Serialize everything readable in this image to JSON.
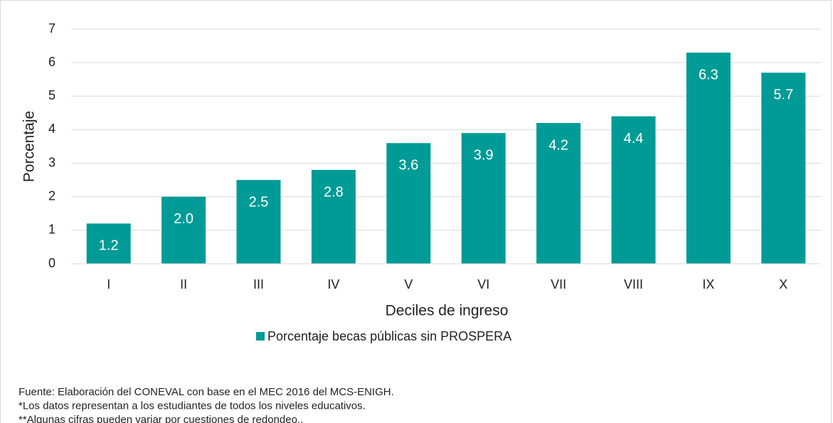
{
  "chart_data": {
    "type": "bar",
    "categories": [
      "I",
      "II",
      "III",
      "IV",
      "V",
      "VI",
      "VII",
      "VIII",
      "IX",
      "X"
    ],
    "series": [
      {
        "name": "Porcentaje becas públicas sin PROSPERA",
        "color": "#009b96",
        "values": [
          1.2,
          2.0,
          2.5,
          2.8,
          3.6,
          3.9,
          4.2,
          4.4,
          6.3,
          5.7
        ],
        "value_labels": [
          "1.2",
          "2.0",
          "2.5",
          "2.8",
          "3.6",
          "3.9",
          "4.2",
          "4.4",
          "6.3",
          "5.7"
        ]
      }
    ],
    "ylim": [
      0,
      7
    ],
    "yticks": [
      0,
      1,
      2,
      3,
      4,
      5,
      6,
      7
    ],
    "grid": true,
    "ylabel": "Porcentaje",
    "xlabel": "Deciles de ingreso",
    "legend": "bottom",
    "notes": [
      "Fuente: Elaboración del CONEVAL con base en el MEC 2016 del MCS-ENIGH.",
      "*Los datos representan a los estudiantes de todos los niveles educativos.",
      "**Algunas cifras pueden variar por cuestiones de redondeo.."
    ]
  }
}
